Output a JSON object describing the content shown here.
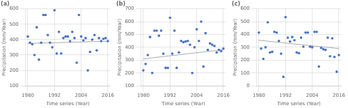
{
  "chart_data": [
    {
      "type": "scatter",
      "title": "(a)",
      "xlabel": "Time series (Year)",
      "ylabel": "Precipitation (mm/Year)",
      "xlim": [
        1979,
        2017
      ],
      "xticks": [
        1980,
        1992,
        2004,
        2016
      ],
      "ylim": [
        100,
        600
      ],
      "yticks": [
        100,
        200,
        300,
        400,
        500,
        600
      ],
      "grid": true,
      "series": [
        {
          "type": "scatter",
          "color": "#4472C4",
          "x": [
            1980,
            1981,
            1982,
            1983,
            1984,
            1985,
            1986,
            1987,
            1988,
            1989,
            1990,
            1991,
            1992,
            1993,
            1994,
            1995,
            1996,
            1997,
            1998,
            1999,
            2000,
            2001,
            2002,
            2003,
            2004,
            2005,
            2006,
            2007,
            2008,
            2009,
            2010,
            2011,
            2012,
            2013,
            2014,
            2015,
            2016
          ],
          "values": [
            420,
            380,
            370,
            300,
            480,
            270,
            380,
            560,
            560,
            430,
            380,
            350,
            590,
            310,
            450,
            310,
            410,
            420,
            420,
            390,
            450,
            410,
            250,
            560,
            420,
            395,
            410,
            200,
            320,
            400,
            430,
            330,
            410,
            390,
            405,
            410,
            390
          ]
        },
        {
          "type": "line",
          "color": "#AAAAAA",
          "x": [
            1980,
            2016
          ],
          "values": [
            375,
            389.4
          ]
        }
      ]
    },
    {
      "type": "scatter",
      "title": "(b)",
      "xlabel": "Time series (Year)",
      "ylabel": "Precipitation (mm/Year)",
      "xlim": [
        1979,
        2017
      ],
      "xticks": [
        1980,
        1992,
        2004,
        2016
      ],
      "ylim": [
        100,
        700
      ],
      "yticks": [
        100,
        200,
        300,
        400,
        500,
        600,
        700
      ],
      "grid": true,
      "series": [
        {
          "type": "scatter",
          "color": "#4472C4",
          "x": [
            1980,
            1981,
            1982,
            1983,
            1984,
            1985,
            1986,
            1987,
            1988,
            1989,
            1990,
            1991,
            1992,
            1993,
            1994,
            1995,
            1996,
            1997,
            1998,
            1999,
            2000,
            2001,
            2002,
            2003,
            2004,
            2005,
            2006,
            2007,
            2008,
            2009,
            2010,
            2011,
            2012,
            2013,
            2014,
            2015,
            2016
          ],
          "values": [
            220,
            270,
            340,
            480,
            200,
            530,
            530,
            490,
            530,
            350,
            240,
            240,
            630,
            350,
            530,
            240,
            360,
            450,
            440,
            445,
            450,
            420,
            200,
            400,
            540,
            450,
            600,
            250,
            510,
            380,
            430,
            420,
            410,
            360,
            380,
            370,
            390
          ]
        },
        {
          "type": "line",
          "color": "#AAAAAA",
          "x": [
            1980,
            2016
          ],
          "values": [
            310,
            382
          ]
        }
      ]
    },
    {
      "type": "scatter",
      "title": "(c)",
      "xlabel": "Time series (Year)",
      "ylabel": "Precipitation (mm/Year)",
      "xlim": [
        1979,
        2017
      ],
      "xticks": [
        1980,
        1992,
        2004,
        2016
      ],
      "ylim": [
        0,
        600
      ],
      "yticks": [
        0,
        100,
        200,
        300,
        400,
        500,
        600
      ],
      "grid": true,
      "series": [
        {
          "type": "scatter",
          "color": "#4472C4",
          "x": [
            1980,
            1981,
            1982,
            1983,
            1984,
            1985,
            1986,
            1987,
            1988,
            1989,
            1990,
            1991,
            1992,
            1993,
            1994,
            1995,
            1996,
            1997,
            1998,
            1999,
            2000,
            2001,
            2002,
            2003,
            2004,
            2005,
            2006,
            2007,
            2008,
            2009,
            2010,
            2011,
            2012,
            2013,
            2014,
            2015,
            2016
          ],
          "values": [
            415,
            290,
            210,
            300,
            495,
            260,
            265,
            420,
            415,
            350,
            250,
            70,
            535,
            375,
            345,
            380,
            355,
            260,
            255,
            375,
            305,
            415,
            415,
            305,
            300,
            420,
            420,
            150,
            295,
            285,
            280,
            375,
            230,
            370,
            225,
            110,
            240
          ]
        },
        {
          "type": "line",
          "color": "#AAAAAA",
          "x": [
            1980,
            2016
          ],
          "values": [
            355,
            290.2
          ]
        }
      ]
    }
  ]
}
